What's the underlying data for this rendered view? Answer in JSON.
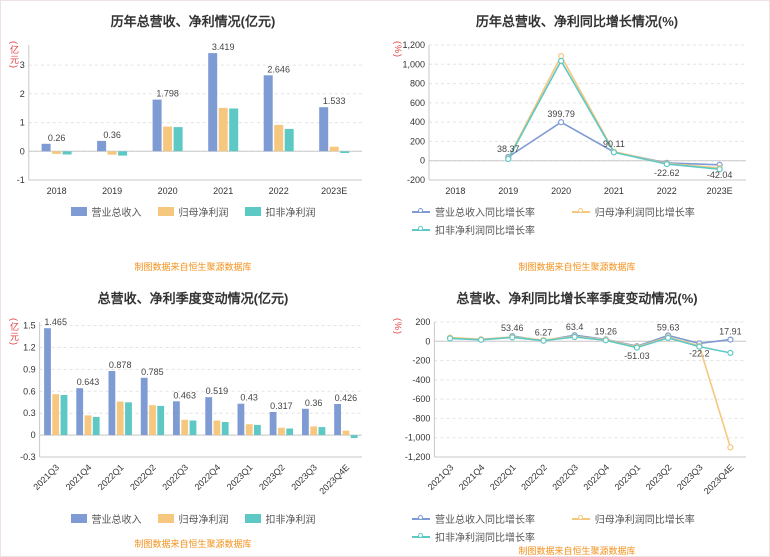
{
  "footer_note": "制图数据来自恒生聚源数据库",
  "series_colors": [
    "#7e9bd4",
    "#f6c87f",
    "#5ec8c4"
  ],
  "accent_colors": {
    "unit_label": "#e23c3c",
    "footer_note": "#f39019",
    "title": "#333333"
  },
  "chart_data": [
    {
      "title": "历年总营收、净利情况(亿元)",
      "type": "bar",
      "y_unit": "(亿元)",
      "rotate_x_labels": false,
      "legend_position": "bottom",
      "grid": true,
      "categories": [
        "2018",
        "2019",
        "2020",
        "2021",
        "2022",
        "2023E"
      ],
      "ylim": [
        -1,
        3.7
      ],
      "yticks": [
        -1,
        0,
        1,
        2,
        3
      ],
      "ytick_labels": [
        "-1",
        "0",
        "1",
        "2",
        "3"
      ],
      "series": [
        {
          "name": "营业总收入",
          "values": [
            0.26,
            0.36,
            1.798,
            3.419,
            2.646,
            1.533
          ],
          "labels": [
            "0.26",
            "0.36",
            "1.798",
            "3.419",
            "2.646",
            "1.533"
          ]
        },
        {
          "name": "归母净利润",
          "values": [
            -0.09,
            -0.12,
            0.86,
            1.51,
            0.92,
            0.16
          ]
        },
        {
          "name": "扣非净利润",
          "values": [
            -0.11,
            -0.15,
            0.84,
            1.49,
            0.78,
            -0.06
          ]
        }
      ]
    },
    {
      "title": "历年总营收、净利同比增长情况(%)",
      "type": "line",
      "y_unit": "(%)",
      "rotate_x_labels": false,
      "legend_position": "bottom",
      "grid": true,
      "categories": [
        "2018",
        "2019",
        "2020",
        "2021",
        "2022",
        "2023E"
      ],
      "ylim": [
        -200,
        1200
      ],
      "yticks": [
        -200,
        0,
        200,
        400,
        600,
        800,
        1000,
        1200
      ],
      "ytick_labels": [
        "-200",
        "0",
        "200",
        "400",
        "600",
        "800",
        "1,000",
        "1,200"
      ],
      "series": [
        {
          "name": "营业总收入同比增长率",
          "values": [
            null,
            38.37,
            399.79,
            90.11,
            -22.62,
            -42.04
          ],
          "labels": [
            null,
            "38.37",
            "399.79",
            "90.11",
            "-22.62",
            "-42.04"
          ]
        },
        {
          "name": "归母净利润同比增长率",
          "values": [
            null,
            25,
            1085,
            95,
            -30,
            -75
          ]
        },
        {
          "name": "扣非净利润同比增长率",
          "values": [
            null,
            18,
            1035,
            87,
            -35,
            -88
          ]
        }
      ]
    },
    {
      "title": "总营收、净利季度变动情况(亿元)",
      "type": "bar",
      "y_unit": "(亿元)",
      "rotate_x_labels": true,
      "legend_position": "bottom",
      "grid": true,
      "categories": [
        "2021Q3",
        "2021Q4",
        "2022Q1",
        "2022Q2",
        "2022Q3",
        "2022Q4",
        "2023Q1",
        "2023Q2",
        "2023Q3",
        "2023Q4E"
      ],
      "ylim": [
        -0.3,
        1.55
      ],
      "yticks": [
        -0.3,
        0,
        0.3,
        0.6,
        0.9,
        1.2,
        1.5
      ],
      "ytick_labels": [
        "-0.3",
        "0",
        "0.3",
        "0.6",
        "0.9",
        "1.2",
        "1.5"
      ],
      "series": [
        {
          "name": "营业总收入",
          "values": [
            1.465,
            0.643,
            0.878,
            0.785,
            0.463,
            0.519,
            0.43,
            0.317,
            0.36,
            0.426
          ],
          "labels": [
            "1.465",
            "0.643",
            "0.878",
            "0.785",
            "0.463",
            "0.519",
            "0.43",
            "0.317",
            "0.36",
            "0.426"
          ]
        },
        {
          "name": "归母净利润",
          "values": [
            0.56,
            0.27,
            0.46,
            0.41,
            0.21,
            0.2,
            0.15,
            0.1,
            0.12,
            0.06
          ]
        },
        {
          "name": "扣非净利润",
          "values": [
            0.55,
            0.25,
            0.45,
            0.4,
            0.2,
            0.18,
            0.14,
            0.09,
            0.11,
            -0.04
          ]
        }
      ]
    },
    {
      "title": "总营收、净利同比增长率季度变动情况(%)",
      "type": "line",
      "y_unit": "(%)",
      "rotate_x_labels": true,
      "legend_position": "bottom",
      "grid": true,
      "categories": [
        "2021Q3",
        "2021Q4",
        "2022Q1",
        "2022Q2",
        "2022Q3",
        "2022Q4",
        "2023Q1",
        "2023Q2",
        "2023Q3",
        "2023Q4E"
      ],
      "ylim": [
        -1200,
        200
      ],
      "yticks": [
        200,
        0,
        -200,
        -400,
        -600,
        -800,
        -1000,
        -1200
      ],
      "ytick_labels": [
        "200",
        "0",
        "-200",
        "-400",
        "-600",
        "-800",
        "-1,000",
        "-1,200"
      ],
      "series": [
        {
          "name": "营业总收入同比增长率",
          "values": [
            null,
            null,
            53.46,
            6.27,
            63.4,
            19.26,
            -51.03,
            59.63,
            -22.2,
            17.91
          ],
          "labels": [
            null,
            null,
            "53.46",
            "6.27",
            "63.4",
            "19.26",
            "-51.03",
            "59.63",
            "-22.2",
            "17.91"
          ]
        },
        {
          "name": "归母净利润同比增长率",
          "values": [
            38,
            22,
            46,
            12,
            50,
            16,
            -58,
            42,
            -48,
            -1100
          ]
        },
        {
          "name": "扣非净利润同比增长率",
          "values": [
            30,
            15,
            40,
            6,
            44,
            10,
            -66,
            35,
            -55,
            -120
          ]
        }
      ]
    }
  ]
}
